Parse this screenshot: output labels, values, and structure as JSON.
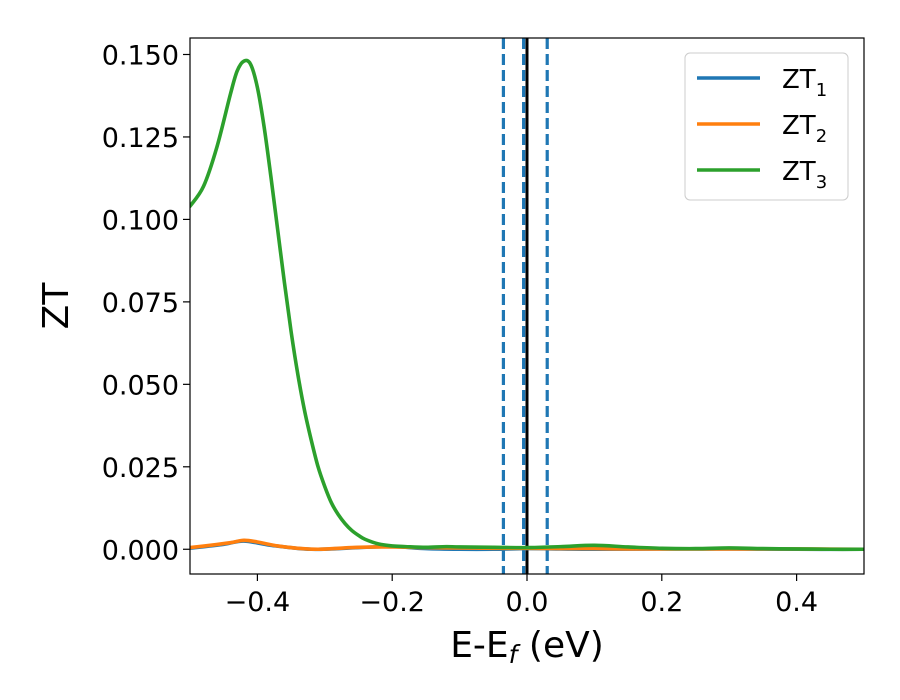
{
  "chart_data": {
    "type": "line",
    "xlabel": "E-E",
    "xlabel_sub": "f",
    "xlabel_unit": " (eV)",
    "ylabel": "ZT",
    "xlim": [
      -0.5,
      0.5
    ],
    "ylim": [
      -0.0075,
      0.155
    ],
    "xticks": [
      -0.4,
      -0.2,
      0.0,
      0.2,
      0.4
    ],
    "xtick_labels": [
      "−0.4",
      "−0.2",
      "0.0",
      "0.2",
      "0.4"
    ],
    "yticks": [
      0.0,
      0.025,
      0.05,
      0.075,
      0.1,
      0.125,
      0.15
    ],
    "ytick_labels": [
      "0.000",
      "0.025",
      "0.050",
      "0.075",
      "0.100",
      "0.125",
      "0.150"
    ],
    "legend_position": "top-right",
    "grid": false,
    "vertical_lines": [
      {
        "x": -0.035,
        "style": "dashed",
        "color": "#1f77b4"
      },
      {
        "x": -0.005,
        "style": "dashed",
        "color": "#1f77b4"
      },
      {
        "x": 0.0,
        "style": "solid",
        "color": "#000000"
      },
      {
        "x": 0.03,
        "style": "dashed",
        "color": "#1f77b4"
      }
    ],
    "series": [
      {
        "name": "ZT",
        "sub": "1",
        "color": "#1f77b4",
        "x": [
          -0.5,
          -0.45,
          -0.42,
          -0.38,
          -0.32,
          -0.25,
          -0.2,
          -0.15,
          -0.1,
          -0.05,
          0.0,
          0.05,
          0.1,
          0.2,
          0.3,
          0.4,
          0.5
        ],
        "y": [
          0.0003,
          0.0015,
          0.0025,
          0.0012,
          0.0,
          0.0005,
          0.0008,
          0.0002,
          0.0,
          0.0,
          0.0002,
          0.0001,
          0.0,
          0.0001,
          0.0001,
          0.0,
          0.0
        ]
      },
      {
        "name": "ZT",
        "sub": "2",
        "color": "#ff7f0e",
        "x": [
          -0.5,
          -0.47,
          -0.44,
          -0.42,
          -0.4,
          -0.37,
          -0.34,
          -0.31,
          -0.28,
          -0.25,
          -0.2,
          -0.15,
          -0.1,
          -0.05,
          0.0,
          0.05,
          0.1,
          0.15,
          0.2,
          0.3,
          0.4,
          0.5
        ],
        "y": [
          0.0005,
          0.0012,
          0.002,
          0.0027,
          0.0022,
          0.001,
          0.0003,
          0.0,
          0.0003,
          0.0006,
          0.0007,
          0.0005,
          0.0004,
          0.0003,
          0.0003,
          0.0002,
          0.0002,
          0.0001,
          0.0001,
          0.0001,
          0.0001,
          0.0
        ]
      },
      {
        "name": "ZT",
        "sub": "3",
        "color": "#2ca02c",
        "x": [
          -0.5,
          -0.48,
          -0.46,
          -0.44,
          -0.43,
          -0.42,
          -0.41,
          -0.4,
          -0.39,
          -0.38,
          -0.37,
          -0.36,
          -0.35,
          -0.34,
          -0.33,
          -0.32,
          -0.31,
          -0.3,
          -0.29,
          -0.28,
          -0.27,
          -0.26,
          -0.25,
          -0.24,
          -0.22,
          -0.2,
          -0.18,
          -0.15,
          -0.12,
          -0.1,
          -0.05,
          0.0,
          0.05,
          0.1,
          0.15,
          0.2,
          0.25,
          0.3,
          0.35,
          0.4,
          0.45,
          0.5
        ],
        "y": [
          0.104,
          0.11,
          0.122,
          0.138,
          0.145,
          0.148,
          0.147,
          0.14,
          0.128,
          0.113,
          0.097,
          0.081,
          0.066,
          0.053,
          0.042,
          0.033,
          0.025,
          0.019,
          0.014,
          0.0105,
          0.0078,
          0.0057,
          0.0042,
          0.003,
          0.0016,
          0.001,
          0.0008,
          0.0006,
          0.0008,
          0.0007,
          0.0006,
          0.0005,
          0.0008,
          0.0012,
          0.0007,
          0.0003,
          0.0002,
          0.0004,
          0.0002,
          0.0001,
          0.0,
          0.0
        ]
      }
    ]
  }
}
